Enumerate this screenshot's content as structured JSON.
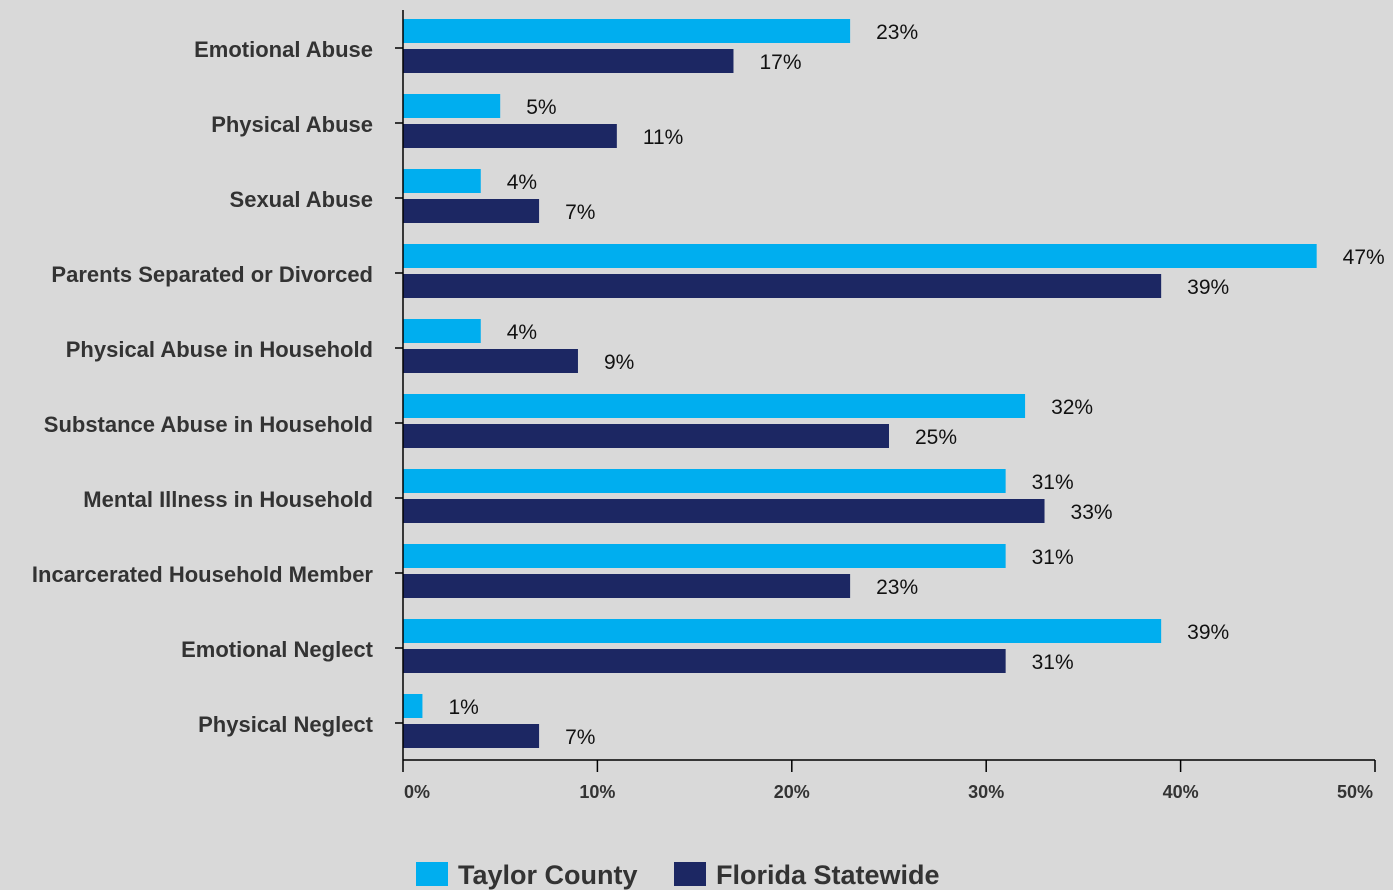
{
  "chart_data": {
    "type": "bar",
    "orientation": "horizontal",
    "categories": [
      "Emotional Abuse",
      "Physical Abuse",
      "Sexual Abuse",
      "Parents Separated or Divorced",
      "Physical Abuse in Household",
      "Substance Abuse in Household",
      "Mental Illness in Household",
      "Incarcerated Household Member",
      "Emotional Neglect",
      "Physical Neglect"
    ],
    "series": [
      {
        "name": "Taylor County",
        "color": "#00aeef",
        "values": [
          23,
          5,
          4,
          47,
          4,
          32,
          31,
          31,
          39,
          1
        ],
        "labels": [
          "23%",
          "5%",
          "4%",
          "47%",
          "4%",
          "32%",
          "31%",
          "31%",
          "39%",
          "1%"
        ]
      },
      {
        "name": "Florida Statewide",
        "color": "#1c2763",
        "values": [
          17,
          11,
          7,
          39,
          9,
          25,
          33,
          23,
          31,
          7
        ],
        "labels": [
          "17%",
          "11%",
          "7%",
          "39%",
          "9%",
          "25%",
          "33%",
          "23%",
          "31%",
          "7%"
        ]
      }
    ],
    "xlim": [
      0,
      50
    ],
    "xticks": [
      0,
      10,
      20,
      30,
      40,
      50
    ],
    "xtick_labels": [
      "0%",
      "10%",
      "20%",
      "30%",
      "40%",
      "50%"
    ],
    "grid": false,
    "legend_position": "bottom-center",
    "title": "",
    "xlabel": "",
    "ylabel": ""
  }
}
